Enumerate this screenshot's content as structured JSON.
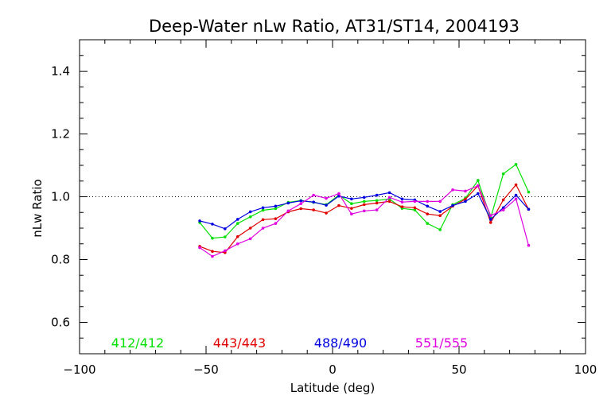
{
  "chart_data": {
    "type": "line",
    "title": "Deep-Water nLw Ratio, AT31/ST14, 2004193",
    "xlabel": "Latitude (deg)",
    "ylabel": "nLw Ratio",
    "xlim": [
      -100,
      100
    ],
    "ylim": [
      0.5,
      1.5
    ],
    "x_ticks": [
      -100,
      -50,
      0,
      50,
      100
    ],
    "x_tick_labels": [
      "−100",
      "−50",
      "0",
      "50",
      "100"
    ],
    "y_ticks": [
      0.6,
      0.8,
      1.0,
      1.2,
      1.4
    ],
    "y_tick_labels": [
      "0.6",
      "0.8",
      "1.0",
      "1.2",
      "1.4"
    ],
    "reference_line": 1.0,
    "grid": false,
    "legend_placement": "bottom-inside",
    "series": [
      {
        "name": "412/412",
        "color": "#00e000",
        "x": [
          -52.5,
          -47.5,
          -42.5,
          -37.5,
          -32.5,
          -27.5,
          -22.5,
          -17.5,
          -12.5,
          -7.5,
          -2.5,
          2.5,
          7.5,
          12.5,
          17.5,
          22.5,
          27.5,
          32.5,
          37.5,
          42.5,
          47.5,
          52.5,
          57.5,
          62.5,
          67.5,
          72.5,
          77.5
        ],
        "y": [
          0.918,
          0.868,
          0.872,
          0.915,
          0.936,
          0.957,
          0.962,
          0.982,
          0.988,
          0.982,
          0.975,
          1.005,
          0.978,
          0.985,
          0.988,
          0.993,
          0.963,
          0.958,
          0.915,
          0.895,
          0.975,
          0.995,
          1.052,
          0.933,
          1.073,
          1.103,
          1.015
        ]
      },
      {
        "name": "443/443",
        "color": "#e00000",
        "x": [
          -52.5,
          -47.5,
          -42.5,
          -37.5,
          -32.5,
          -27.5,
          -22.5,
          -17.5,
          -12.5,
          -7.5,
          -2.5,
          2.5,
          7.5,
          12.5,
          17.5,
          22.5,
          27.5,
          32.5,
          37.5,
          42.5,
          47.5,
          52.5,
          57.5,
          62.5,
          67.5,
          72.5,
          77.5
        ],
        "y": [
          0.842,
          0.826,
          0.822,
          0.873,
          0.9,
          0.927,
          0.93,
          0.952,
          0.962,
          0.958,
          0.948,
          0.972,
          0.963,
          0.975,
          0.98,
          0.985,
          0.968,
          0.965,
          0.945,
          0.94,
          0.97,
          0.992,
          1.035,
          0.918,
          0.99,
          1.038,
          0.96
        ]
      },
      {
        "name": "488/490",
        "color": "#0000e0",
        "x": [
          -52.5,
          -47.5,
          -42.5,
          -37.5,
          -32.5,
          -27.5,
          -22.5,
          -17.5,
          -12.5,
          -7.5,
          -2.5,
          2.5,
          7.5,
          12.5,
          17.5,
          22.5,
          27.5,
          32.5,
          37.5,
          42.5,
          47.5,
          52.5,
          57.5,
          62.5,
          67.5,
          72.5,
          77.5
        ],
        "y": [
          0.923,
          0.913,
          0.898,
          0.928,
          0.952,
          0.965,
          0.97,
          0.98,
          0.987,
          0.983,
          0.973,
          1.002,
          0.993,
          0.998,
          1.005,
          1.013,
          0.993,
          0.99,
          0.97,
          0.953,
          0.972,
          0.985,
          1.01,
          0.928,
          0.965,
          1.005,
          0.96
        ]
      },
      {
        "name": "551/555",
        "color": "#e000e0",
        "x": [
          -52.5,
          -47.5,
          -42.5,
          -37.5,
          -32.5,
          -27.5,
          -22.5,
          -17.5,
          -12.5,
          -7.5,
          -2.5,
          2.5,
          7.5,
          12.5,
          17.5,
          22.5,
          27.5,
          32.5,
          37.5,
          42.5,
          47.5,
          52.5,
          57.5,
          62.5,
          67.5,
          72.5,
          77.5
        ],
        "y": [
          0.838,
          0.81,
          0.828,
          0.85,
          0.866,
          0.9,
          0.915,
          0.955,
          0.978,
          1.005,
          0.995,
          1.01,
          0.945,
          0.955,
          0.958,
          0.998,
          0.983,
          0.985,
          0.985,
          0.985,
          1.022,
          1.018,
          1.035,
          0.94,
          0.958,
          0.993,
          0.845
        ]
      }
    ]
  }
}
